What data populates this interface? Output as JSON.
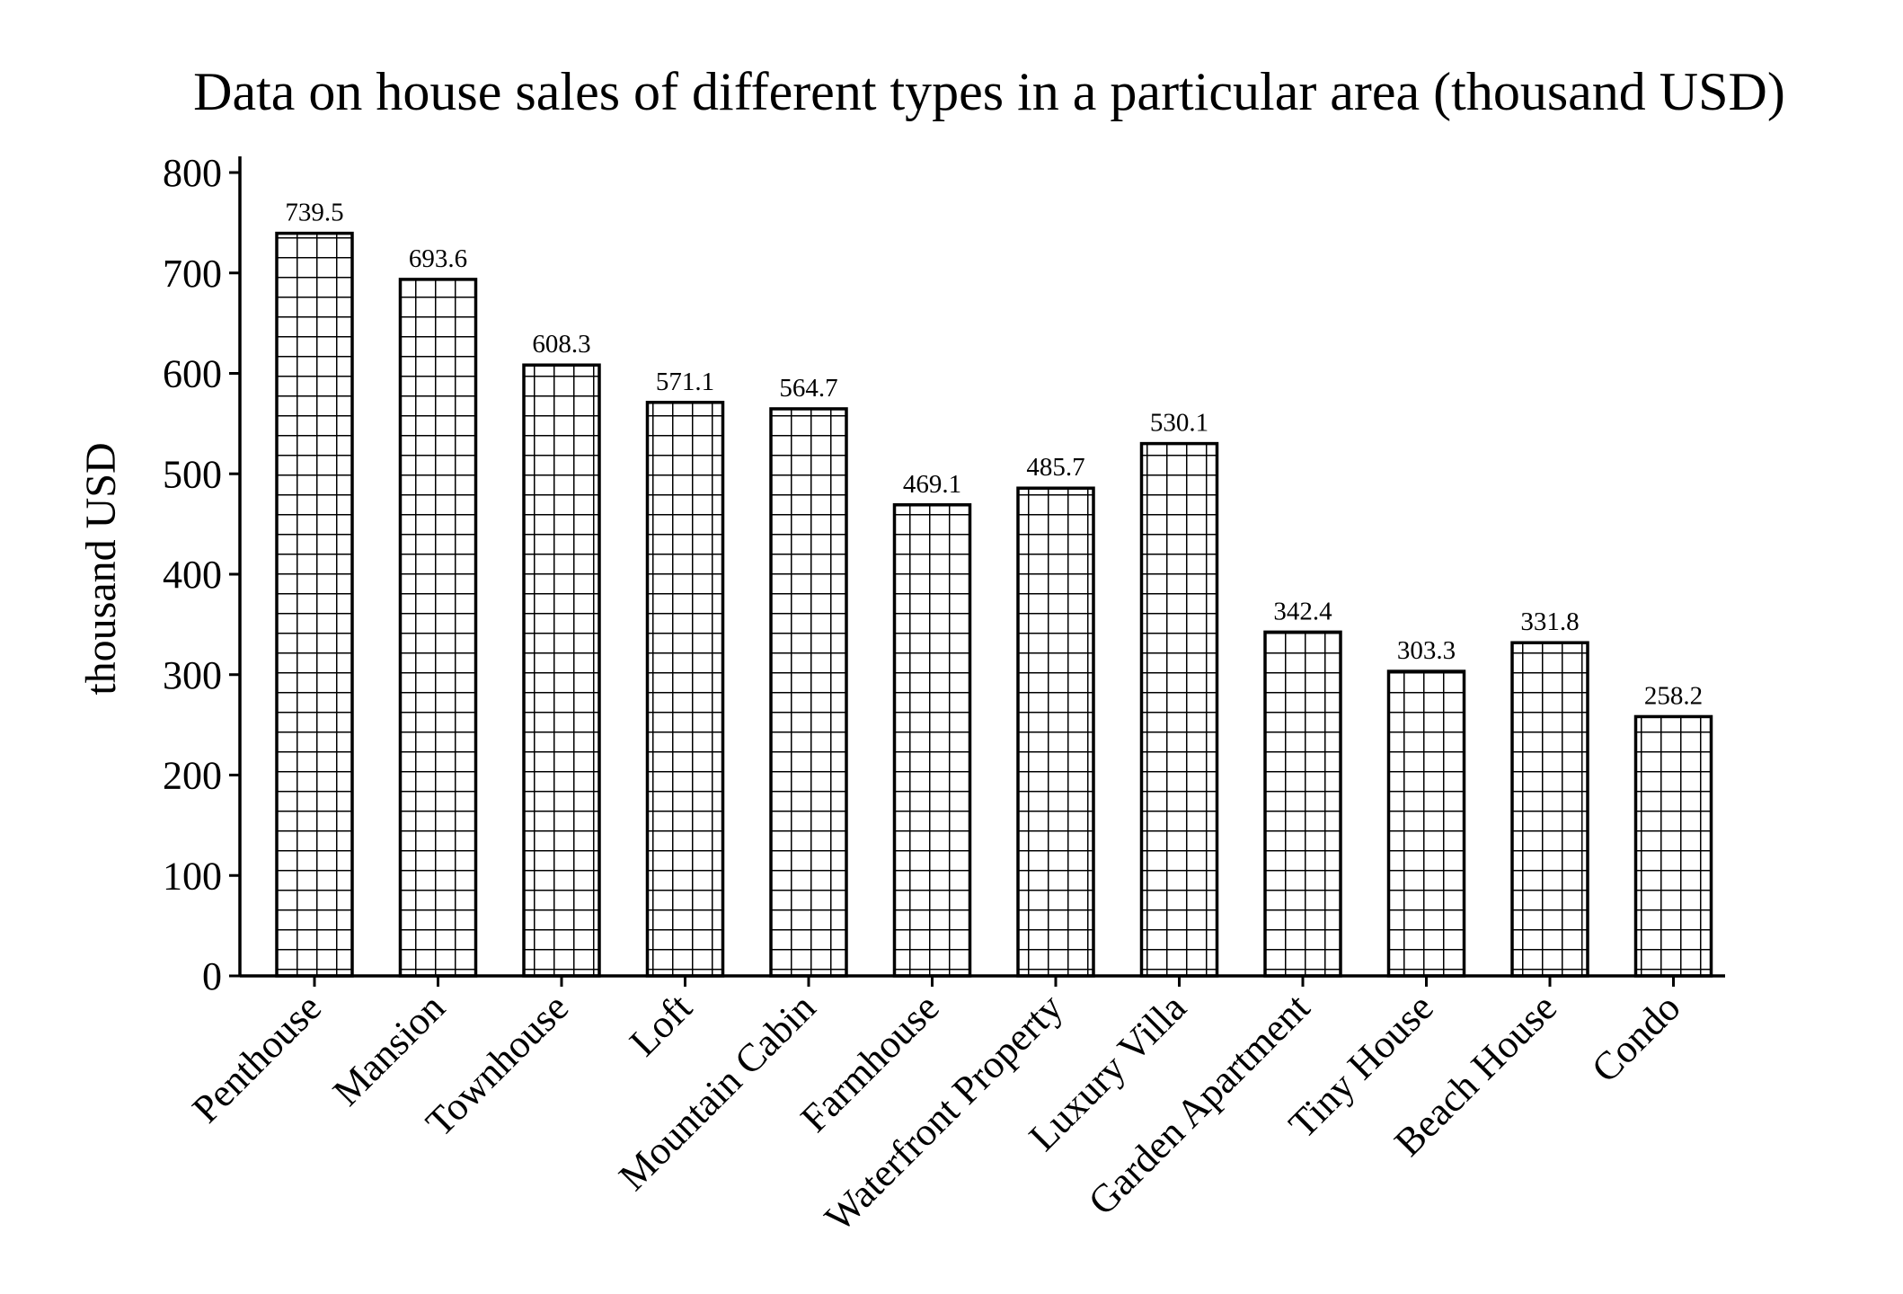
{
  "chart_data": {
    "type": "bar",
    "title": "Data on house sales of different types in a particular area (thousand USD)",
    "xlabel": "",
    "ylabel": "thousand USD",
    "ylim": [
      0,
      800
    ],
    "yticks": [
      0,
      100,
      200,
      300,
      400,
      500,
      600,
      700,
      800
    ],
    "grid": false,
    "legend": "none",
    "bar_fill": "grid-hatch",
    "colors": {
      "bar_edge": "#000000",
      "bar_face": "#ffffff"
    },
    "categories": [
      "Penthouse",
      "Mansion",
      "Townhouse",
      "Loft",
      "Mountain Cabin",
      "Farmhouse",
      "Waterfront Property",
      "Luxury Villa",
      "Garden Apartment",
      "Tiny House",
      "Beach House",
      "Condo"
    ],
    "values": [
      739.5,
      693.6,
      608.3,
      571.1,
      564.7,
      469.1,
      485.7,
      530.1,
      342.4,
      303.3,
      331.8,
      258.2
    ],
    "value_labels": [
      "739.5",
      "693.6",
      "608.3",
      "571.1",
      "564.7",
      "469.1",
      "485.7",
      "530.1",
      "342.4",
      "303.3",
      "331.8",
      "258.2"
    ]
  }
}
